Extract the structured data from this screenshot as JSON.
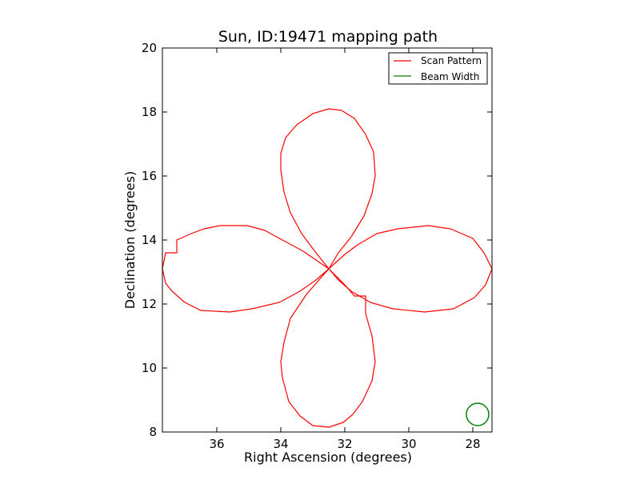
{
  "chart_data": {
    "type": "line",
    "title": "Sun, ID:19471 mapping path",
    "xlabel": "Right Ascension (degrees)",
    "ylabel": "Declination (degrees)",
    "xlim": [
      37.7,
      27.4
    ],
    "ylim": [
      8,
      20
    ],
    "x_reversed": true,
    "xticks": [
      "36",
      "34",
      "32",
      "30",
      "28"
    ],
    "yticks": [
      "8",
      "10",
      "12",
      "14",
      "16",
      "18",
      "20"
    ],
    "grid": false,
    "legend": {
      "placement": "top-right"
    },
    "series": [
      {
        "name": "Scan Pattern",
        "color": "#ff0000",
        "points": [
          [
            32.5,
            13.1
          ],
          [
            32.9,
            13.6
          ],
          [
            33.35,
            14.2
          ],
          [
            33.7,
            14.85
          ],
          [
            33.9,
            15.5
          ],
          [
            34.0,
            16.2
          ],
          [
            34.0,
            16.7
          ],
          [
            33.85,
            17.2
          ],
          [
            33.5,
            17.6
          ],
          [
            33.0,
            17.95
          ],
          [
            32.5,
            18.1
          ],
          [
            32.1,
            18.05
          ],
          [
            31.7,
            17.8
          ],
          [
            31.35,
            17.3
          ],
          [
            31.1,
            16.75
          ],
          [
            31.05,
            16.0
          ],
          [
            31.15,
            15.45
          ],
          [
            31.4,
            14.75
          ],
          [
            31.8,
            14.1
          ],
          [
            32.2,
            13.6
          ],
          [
            32.5,
            13.1
          ],
          [
            32.9,
            12.75
          ],
          [
            33.4,
            12.4
          ],
          [
            34.05,
            12.05
          ],
          [
            34.9,
            11.85
          ],
          [
            35.6,
            11.75
          ],
          [
            36.5,
            11.8
          ],
          [
            37.0,
            12.05
          ],
          [
            37.4,
            12.4
          ],
          [
            37.6,
            12.65
          ],
          [
            37.7,
            13.1
          ],
          [
            37.6,
            13.6
          ],
          [
            37.25,
            13.6
          ],
          [
            37.25,
            14.0
          ],
          [
            36.8,
            14.2
          ],
          [
            36.4,
            14.35
          ],
          [
            35.9,
            14.45
          ],
          [
            35.05,
            14.45
          ],
          [
            34.5,
            14.3
          ],
          [
            33.95,
            14.0
          ],
          [
            33.3,
            13.65
          ],
          [
            32.5,
            13.1
          ],
          [
            32.0,
            12.6
          ],
          [
            31.7,
            12.25
          ],
          [
            31.35,
            12.25
          ],
          [
            31.35,
            11.7
          ],
          [
            31.15,
            11.0
          ],
          [
            31.05,
            10.2
          ],
          [
            31.15,
            9.6
          ],
          [
            31.45,
            8.95
          ],
          [
            31.75,
            8.55
          ],
          [
            32.05,
            8.3
          ],
          [
            32.5,
            8.15
          ],
          [
            33.0,
            8.2
          ],
          [
            33.4,
            8.5
          ],
          [
            33.75,
            8.95
          ],
          [
            33.95,
            9.7
          ],
          [
            34.0,
            10.2
          ],
          [
            33.9,
            10.8
          ],
          [
            33.7,
            11.55
          ],
          [
            33.2,
            12.3
          ],
          [
            32.5,
            13.1
          ],
          [
            32.0,
            13.55
          ],
          [
            31.6,
            13.85
          ],
          [
            31.0,
            14.2
          ],
          [
            30.35,
            14.35
          ],
          [
            29.4,
            14.45
          ],
          [
            28.7,
            14.35
          ],
          [
            28.0,
            14.05
          ],
          [
            27.65,
            13.6
          ],
          [
            27.4,
            13.1
          ],
          [
            27.6,
            12.6
          ],
          [
            27.95,
            12.2
          ],
          [
            28.6,
            11.85
          ],
          [
            29.5,
            11.75
          ],
          [
            30.5,
            11.85
          ],
          [
            31.2,
            12.05
          ],
          [
            31.8,
            12.4
          ],
          [
            32.2,
            12.75
          ],
          [
            32.5,
            13.1
          ]
        ]
      },
      {
        "name": "Beam Width",
        "color": "#008000",
        "shape": "circle",
        "center": [
          27.85,
          8.55
        ],
        "radius_deg": 0.35
      }
    ]
  }
}
